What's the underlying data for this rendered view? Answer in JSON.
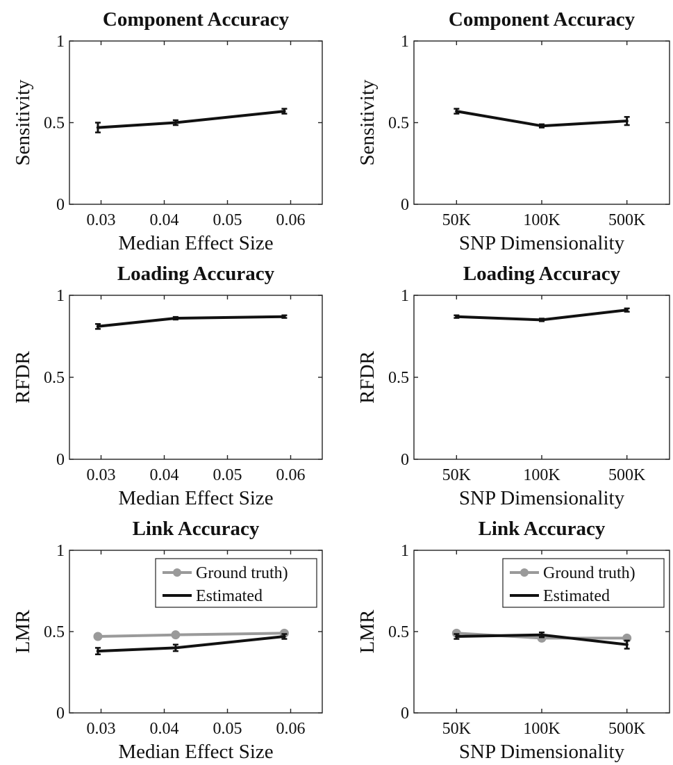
{
  "colors": {
    "estimated": "#111111",
    "ground_truth": "#9a9a9a",
    "axes": "#222222"
  },
  "chart_data": [
    {
      "type": "line",
      "title": "Component Accuracy",
      "xlabel": "Median Effect Size",
      "ylabel": "Sensitivity",
      "xscale": "linear",
      "xlim": [
        0.025,
        0.065
      ],
      "xticks": [
        0.03,
        0.04,
        0.05,
        0.06
      ],
      "xtick_labels": [
        "0.03",
        "0.04",
        "0.05",
        "0.06"
      ],
      "ylim": [
        0,
        1
      ],
      "yticks": [
        0,
        0.5,
        1
      ],
      "ytick_labels": [
        "0",
        "0.5",
        "1"
      ],
      "x": [
        0.0295,
        0.0418,
        0.059
      ],
      "series": [
        {
          "key": "estimated",
          "values": [
            0.47,
            0.5,
            0.57
          ],
          "errors": [
            0.03,
            0.015,
            0.015
          ],
          "markers": false
        }
      ],
      "legend": null
    },
    {
      "type": "line",
      "title": "Component Accuracy",
      "xlabel": "SNP Dimensionality",
      "ylabel": "Sensitivity",
      "xscale": "categorical",
      "xlim": [
        0.5,
        3.5
      ],
      "xticks": [
        1,
        2,
        3
      ],
      "xtick_labels": [
        "50K",
        "100K",
        "500K"
      ],
      "ylim": [
        0,
        1
      ],
      "yticks": [
        0,
        0.5,
        1
      ],
      "ytick_labels": [
        "0",
        "0.5",
        "1"
      ],
      "x": [
        1,
        2,
        3
      ],
      "series": [
        {
          "key": "estimated",
          "values": [
            0.57,
            0.48,
            0.51
          ],
          "errors": [
            0.015,
            0.01,
            0.025
          ],
          "markers": false
        }
      ],
      "legend": null
    },
    {
      "type": "line",
      "title": "Loading Accuracy",
      "xlabel": "Median Effect Size",
      "ylabel": "RFDR",
      "xscale": "linear",
      "xlim": [
        0.025,
        0.065
      ],
      "xticks": [
        0.03,
        0.04,
        0.05,
        0.06
      ],
      "xtick_labels": [
        "0.03",
        "0.04",
        "0.05",
        "0.06"
      ],
      "ylim": [
        0,
        1
      ],
      "yticks": [
        0,
        0.5,
        1
      ],
      "ytick_labels": [
        "0",
        "0.5",
        "1"
      ],
      "x": [
        0.0295,
        0.0418,
        0.059
      ],
      "series": [
        {
          "key": "estimated",
          "values": [
            0.81,
            0.86,
            0.87
          ],
          "errors": [
            0.015,
            0.008,
            0.008
          ],
          "markers": false
        }
      ],
      "legend": null
    },
    {
      "type": "line",
      "title": "Loading Accuracy",
      "xlabel": "SNP Dimensionality",
      "ylabel": "RFDR",
      "xscale": "categorical",
      "xlim": [
        0.5,
        3.5
      ],
      "xticks": [
        1,
        2,
        3
      ],
      "xtick_labels": [
        "50K",
        "100K",
        "500K"
      ],
      "ylim": [
        0,
        1
      ],
      "yticks": [
        0,
        0.5,
        1
      ],
      "ytick_labels": [
        "0",
        "0.5",
        "1"
      ],
      "x": [
        1,
        2,
        3
      ],
      "series": [
        {
          "key": "estimated",
          "values": [
            0.87,
            0.85,
            0.91
          ],
          "errors": [
            0.008,
            0.008,
            0.01
          ],
          "markers": false
        }
      ],
      "legend": null
    },
    {
      "type": "line",
      "title": "Link Accuracy",
      "xlabel": "Median Effect Size",
      "ylabel": "LMR",
      "xscale": "linear",
      "xlim": [
        0.025,
        0.065
      ],
      "xticks": [
        0.03,
        0.04,
        0.05,
        0.06
      ],
      "xtick_labels": [
        "0.03",
        "0.04",
        "0.05",
        "0.06"
      ],
      "ylim": [
        0,
        1
      ],
      "yticks": [
        0,
        0.5,
        1
      ],
      "ytick_labels": [
        "0",
        "0.5",
        "1"
      ],
      "x": [
        0.0295,
        0.0418,
        0.059
      ],
      "series": [
        {
          "key": "ground_truth",
          "name": "Ground truth)",
          "values": [
            0.47,
            0.48,
            0.49
          ],
          "errors": [
            0,
            0,
            0
          ],
          "markers": true
        },
        {
          "key": "estimated",
          "name": "Estimated",
          "values": [
            0.38,
            0.4,
            0.47
          ],
          "errors": [
            0.02,
            0.02,
            0.015
          ],
          "markers": false
        }
      ],
      "legend": "top-right"
    },
    {
      "type": "line",
      "title": "Link Accuracy",
      "xlabel": "SNP Dimensionality",
      "ylabel": "LMR",
      "xscale": "categorical",
      "xlim": [
        0.5,
        3.5
      ],
      "xticks": [
        1,
        2,
        3
      ],
      "xtick_labels": [
        "50K",
        "100K",
        "500K"
      ],
      "ylim": [
        0,
        1
      ],
      "yticks": [
        0,
        0.5,
        1
      ],
      "ytick_labels": [
        "0",
        "0.5",
        "1"
      ],
      "x": [
        1,
        2,
        3
      ],
      "series": [
        {
          "key": "ground_truth",
          "name": "Ground truth)",
          "values": [
            0.49,
            0.46,
            0.46
          ],
          "errors": [
            0,
            0,
            0
          ],
          "markers": true
        },
        {
          "key": "estimated",
          "name": "Estimated",
          "values": [
            0.47,
            0.48,
            0.42
          ],
          "errors": [
            0.015,
            0.015,
            0.025
          ],
          "markers": false
        }
      ],
      "legend": "top-right"
    }
  ]
}
